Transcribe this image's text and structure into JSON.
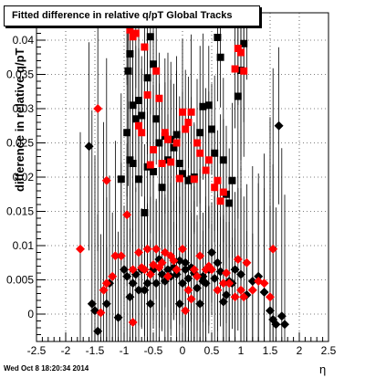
{
  "footer": {
    "timestamp": "Wed Oct  8 18:20:34 2014"
  },
  "chart_data": {
    "type": "scatter",
    "title": "Fitted difference in relative q/pT  Global Tracks",
    "xlabel": "η",
    "ylabel": "difference in relative q/pT",
    "xlim": [
      -2.5,
      2.5
    ],
    "ylim": [
      -0.004,
      0.044
    ],
    "grid": true,
    "x_ticks": [
      "-2.5",
      "-2",
      "-1.5",
      "-1",
      "-0.5",
      "0",
      "0.5",
      "1",
      "1.5",
      "2",
      "2.5"
    ],
    "y_ticks": [
      "0",
      "0.005",
      "0.01",
      "0.015",
      "0.02",
      "0.025",
      "0.03",
      "0.035",
      "0.04"
    ],
    "colors": {
      "black_series": "#000000",
      "red_series": "#ff0000"
    },
    "series": [
      {
        "marker": "square",
        "color": "#000000",
        "points": [
          [
            -0.95,
            0.0425
          ],
          [
            -0.55,
            0.0405
          ],
          [
            -0.5,
            0.0365
          ],
          [
            -0.9,
            0.038
          ],
          [
            -0.93,
            0.0355
          ],
          [
            -0.6,
            0.0345
          ],
          [
            -0.85,
            0.0305
          ],
          [
            -0.75,
            0.0312
          ],
          [
            -0.8,
            0.0285
          ],
          [
            -0.7,
            0.029
          ],
          [
            -0.45,
            0.0285
          ],
          [
            -0.3,
            0.026
          ],
          [
            -0.1,
            0.0262
          ],
          [
            -0.95,
            0.0265
          ],
          [
            -0.9,
            0.0225
          ],
          [
            -0.85,
            0.022
          ],
          [
            -0.6,
            0.0215
          ],
          [
            -0.5,
            0.0208
          ],
          [
            -0.75,
            0.0197
          ],
          [
            -0.4,
            0.025
          ],
          [
            -0.25,
            0.0225
          ],
          [
            -0.2,
            0.0255
          ],
          [
            -0.15,
            0.0243
          ],
          [
            -0.05,
            0.022
          ],
          [
            0.0,
            0.0205
          ],
          [
            0.1,
            0.0195
          ],
          [
            0.2,
            0.02
          ],
          [
            0.3,
            0.0265
          ],
          [
            0.35,
            0.0303
          ],
          [
            0.45,
            0.0305
          ],
          [
            0.5,
            0.027
          ],
          [
            0.55,
            0.0235
          ],
          [
            0.6,
            0.0404
          ],
          [
            0.65,
            0.0375
          ],
          [
            0.7,
            0.0225
          ],
          [
            0.75,
            0.0175
          ],
          [
            0.8,
            0.0162
          ],
          [
            0.95,
            0.0318
          ],
          [
            1.0,
            0.0356
          ],
          [
            1.05,
            0.0395
          ],
          [
            1.1,
            0.0425
          ],
          [
            0.85,
            0.0195
          ],
          [
            -1.05,
            0.0197
          ],
          [
            -0.35,
            0.0185
          ],
          [
            0.15,
            0.0197
          ],
          [
            -0.65,
            0.0148
          ]
        ]
      },
      {
        "marker": "square",
        "color": "#ff0000",
        "points": [
          [
            -0.95,
            0.0428
          ],
          [
            -0.9,
            0.0415
          ],
          [
            -0.85,
            0.0405
          ],
          [
            -0.8,
            0.041
          ],
          [
            -0.65,
            0.039
          ],
          [
            -0.45,
            0.0355
          ],
          [
            -0.6,
            0.032
          ],
          [
            -0.4,
            0.0315
          ],
          [
            -0.75,
            0.0275
          ],
          [
            -0.7,
            0.0265
          ],
          [
            -0.3,
            0.0265
          ],
          [
            -0.2,
            0.0222
          ],
          [
            -0.35,
            0.022
          ],
          [
            -0.5,
            0.024
          ],
          [
            -0.1,
            0.025
          ],
          [
            0.0,
            0.0295
          ],
          [
            0.05,
            0.027
          ],
          [
            0.1,
            0.028
          ],
          [
            0.15,
            0.0295
          ],
          [
            0.25,
            0.025
          ],
          [
            0.3,
            0.0235
          ],
          [
            0.4,
            0.021
          ],
          [
            0.45,
            0.0225
          ],
          [
            0.55,
            0.0185
          ],
          [
            0.65,
            0.0165
          ],
          [
            0.7,
            0.0178
          ],
          [
            0.9,
            0.0358
          ],
          [
            0.95,
            0.0388
          ],
          [
            1.0,
            0.0382
          ],
          [
            1.05,
            0.0355
          ],
          [
            0.6,
            0.0195
          ],
          [
            -0.05,
            0.0198
          ],
          [
            -0.55,
            0.0218
          ],
          [
            0.2,
            0.0197
          ],
          [
            -0.25,
            0.0255
          ]
        ]
      },
      {
        "marker": "diamond",
        "color": "#000000",
        "points": [
          [
            -1.6,
            0.0245
          ],
          [
            -1.55,
            0.0015
          ],
          [
            -1.5,
            0.0005
          ],
          [
            -1.45,
            -0.0025
          ],
          [
            -1.3,
            0.0015
          ],
          [
            -1.25,
            0.0045
          ],
          [
            -1.1,
            -0.0005
          ],
          [
            -1.0,
            0.0065
          ],
          [
            -0.95,
            0.0055
          ],
          [
            -0.9,
            0.0025
          ],
          [
            -0.85,
            0.0045
          ],
          [
            -0.8,
            0.0058
          ],
          [
            -0.75,
            0.0035
          ],
          [
            -0.7,
            0.0065
          ],
          [
            -0.65,
            0.0035
          ],
          [
            -0.6,
            0.0045
          ],
          [
            -0.55,
            0.0015
          ],
          [
            -0.5,
            0.0065
          ],
          [
            -0.45,
            0.0045
          ],
          [
            -0.4,
            0.008
          ],
          [
            -0.35,
            0.0058
          ],
          [
            -0.3,
            0.0048
          ],
          [
            -0.25,
            0.0065
          ],
          [
            -0.2,
            0.0055
          ],
          [
            -0.15,
            0.0068
          ],
          [
            -0.1,
            0.0058
          ],
          [
            -0.05,
            0.0078
          ],
          [
            0.0,
            0.0045
          ],
          [
            0.05,
            0.0065
          ],
          [
            0.1,
            0.0052
          ],
          [
            0.15,
            0.0068
          ],
          [
            0.2,
            0.006
          ],
          [
            0.25,
            0.0038
          ],
          [
            0.3,
            0.0015
          ],
          [
            0.35,
            0.0055
          ],
          [
            0.4,
            0.0045
          ],
          [
            0.45,
            0.0065
          ],
          [
            0.5,
            0.009
          ],
          [
            0.55,
            0.0052
          ],
          [
            0.6,
            0.0075
          ],
          [
            0.65,
            0.0062
          ],
          [
            0.7,
            0.0018
          ],
          [
            0.75,
            0.0028
          ],
          [
            0.8,
            0.0048
          ],
          [
            0.85,
            0.0045
          ],
          [
            0.9,
            0.0065
          ],
          [
            1.0,
            0.0058
          ],
          [
            1.1,
            0.0028
          ],
          [
            1.2,
            0.0048
          ],
          [
            1.3,
            0.0055
          ],
          [
            1.4,
            0.0032
          ],
          [
            1.5,
            0.0005
          ],
          [
            1.55,
            -0.0008
          ],
          [
            1.6,
            -0.0015
          ],
          [
            1.65,
            0.0275
          ],
          [
            1.7,
            -0.0003
          ],
          [
            1.75,
            -0.0015
          ],
          [
            -0.05,
            0.0015
          ],
          [
            0.05,
            0.0075
          ],
          [
            0.35,
            0.0048
          ]
        ]
      },
      {
        "marker": "diamond",
        "color": "#ff0000",
        "points": [
          [
            -1.75,
            0.0095
          ],
          [
            -1.4,
            0.0002
          ],
          [
            -1.35,
            0.0035
          ],
          [
            -1.3,
            0.0045
          ],
          [
            -1.2,
            0.0055
          ],
          [
            -1.15,
            0.0085
          ],
          [
            -1.05,
            0.0085
          ],
          [
            -0.95,
            0.0145
          ],
          [
            -0.85,
            0.0065
          ],
          [
            -0.75,
            0.009
          ],
          [
            -0.7,
            0.0068
          ],
          [
            -0.6,
            0.0095
          ],
          [
            -0.55,
            0.0058
          ],
          [
            -0.5,
            0.0072
          ],
          [
            -0.45,
            0.0095
          ],
          [
            -0.4,
            0.0068
          ],
          [
            -0.35,
            0.0075
          ],
          [
            -0.3,
            0.009
          ],
          [
            -0.25,
            0.0055
          ],
          [
            -0.2,
            0.0085
          ],
          [
            -0.15,
            0.0078
          ],
          [
            -0.1,
            0.0065
          ],
          [
            0.0,
            0.0095
          ],
          [
            0.05,
            0.0005
          ],
          [
            0.1,
            0.0035
          ],
          [
            0.15,
            0.0022
          ],
          [
            0.2,
            0.0065
          ],
          [
            0.25,
            0.0055
          ],
          [
            0.3,
            0.0085
          ],
          [
            0.4,
            0.0065
          ],
          [
            0.45,
            0.007
          ],
          [
            0.5,
            0.0065
          ],
          [
            0.6,
            0.0035
          ],
          [
            0.7,
            0.0045
          ],
          [
            0.75,
            0.006
          ],
          [
            0.8,
            0.0045
          ],
          [
            0.9,
            0.0025
          ],
          [
            0.95,
            0.008
          ],
          [
            1.0,
            0.0035
          ],
          [
            1.05,
            0.0025
          ],
          [
            1.1,
            0.0075
          ],
          [
            1.2,
            0.0035
          ],
          [
            1.3,
            0.0048
          ],
          [
            1.4,
            0.0045
          ],
          [
            1.5,
            0.0025
          ],
          [
            1.55,
            0.0095
          ],
          [
            -1.45,
            0.03
          ],
          [
            -0.85,
            -0.0012
          ],
          [
            -1.3,
            0.0195
          ],
          [
            -0.65,
            0.0065
          ]
        ]
      }
    ]
  }
}
